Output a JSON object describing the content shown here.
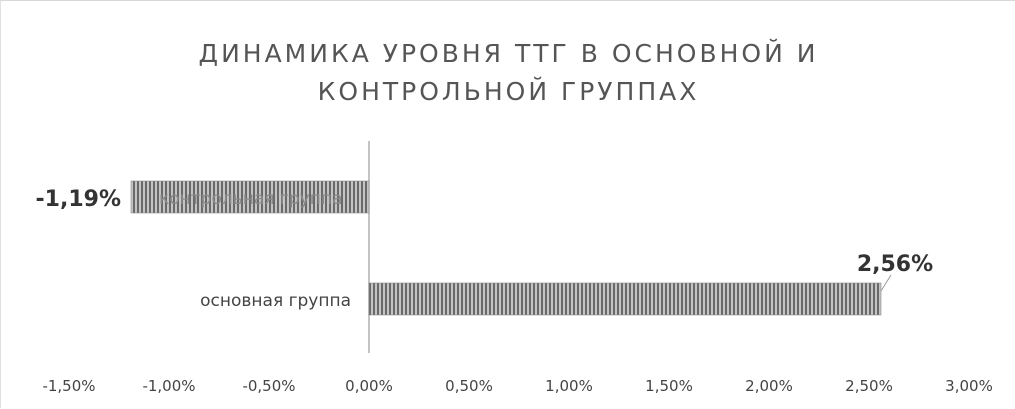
{
  "chart_data": {
    "type": "bar",
    "orientation": "horizontal",
    "title_lines": [
      "ДИНАМИКА  УРОВНЯ ТТГ В ОСНОВНОЙ И",
      "КОНТРОЛЬНОЙ ГРУППАХ"
    ],
    "categories": [
      "контрольная группа",
      "основная группа"
    ],
    "values": [
      -1.19,
      2.56
    ],
    "data_labels": [
      "-1,19%",
      "2,56%"
    ],
    "xlim": [
      -1.5,
      3.0
    ],
    "x_ticks": [
      -1.5,
      -1.0,
      -0.5,
      0.0,
      0.5,
      1.0,
      1.5,
      2.0,
      2.5,
      3.0
    ],
    "x_tick_labels": [
      "-1,50%",
      "-1,00%",
      "-0,50%",
      "0,00%",
      "0,50%",
      "1,00%",
      "1,50%",
      "2,00%",
      "2,50%",
      "3,00%"
    ],
    "grid": false,
    "legend": "none",
    "bar_color": "#9a9a9a",
    "axis_color": "#b0b0b0",
    "text_color": "#444444"
  }
}
